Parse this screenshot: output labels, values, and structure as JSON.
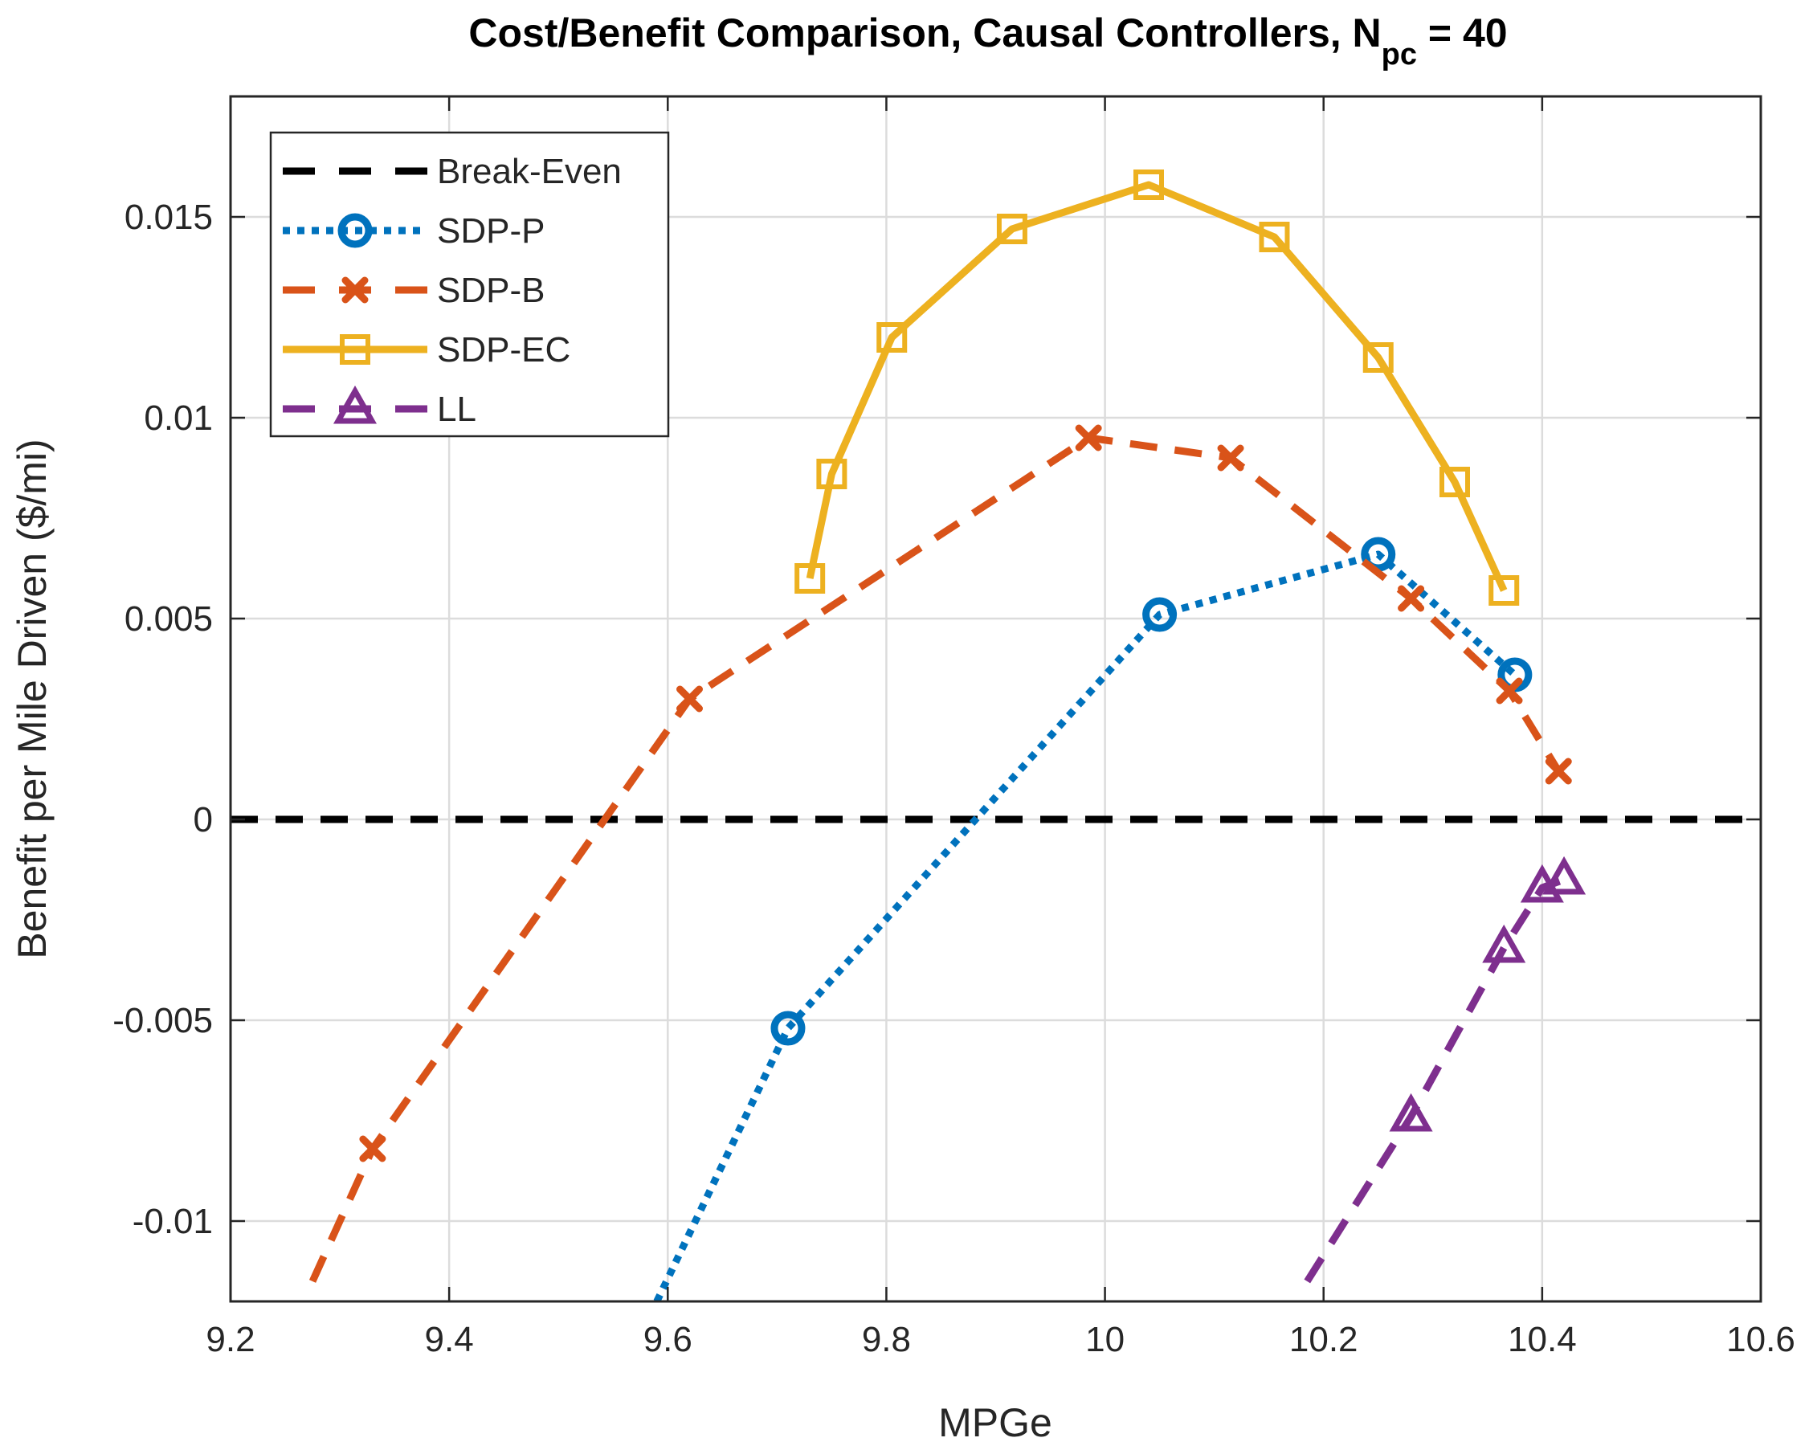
{
  "chart_data": {
    "type": "line",
    "title": "Cost/Benefit Comparison, Causal Controllers, N",
    "title_subscript": "pc",
    "title_suffix": " = 40",
    "xlabel": "MPGe",
    "ylabel": "Benefit per Mile Driven ($/mi)",
    "xlim": [
      9.2,
      10.6
    ],
    "ylim": [
      -0.012,
      0.018
    ],
    "xticks": [
      9.2,
      9.4,
      9.6,
      9.8,
      10,
      10.2,
      10.4,
      10.6
    ],
    "xtick_labels": [
      "9.2",
      "9.4",
      "9.6",
      "9.8",
      "10",
      "10.2",
      "10.4",
      "10.6"
    ],
    "yticks": [
      -0.01,
      -0.005,
      0,
      0.005,
      0.01,
      0.015
    ],
    "ytick_labels": [
      "-0.01",
      "-0.005",
      "0",
      "0.005",
      "0.01",
      "0.015"
    ],
    "grid": true,
    "legend_position": "top-left",
    "series": [
      {
        "name": "Break-Even",
        "color": "#000000",
        "style": "dashed",
        "marker": "none",
        "points": [
          [
            9.2,
            0
          ],
          [
            10.6,
            0
          ]
        ]
      },
      {
        "name": "SDP-P",
        "color": "#0072BD",
        "style": "dotted",
        "marker": "circle",
        "points": [
          [
            9.59,
            -0.012
          ],
          [
            9.71,
            -0.0052
          ],
          [
            10.05,
            0.0051
          ],
          [
            10.25,
            0.0066
          ],
          [
            10.375,
            0.0036
          ]
        ],
        "marker_from": 1
      },
      {
        "name": "SDP-B",
        "color": "#D95319",
        "style": "dashed",
        "marker": "x",
        "points": [
          [
            9.275,
            -0.0115
          ],
          [
            9.33,
            -0.0082
          ],
          [
            9.62,
            0.003
          ],
          [
            9.985,
            0.0095
          ],
          [
            10.115,
            0.009
          ],
          [
            10.28,
            0.0055
          ],
          [
            10.37,
            0.0032
          ],
          [
            10.415,
            0.0012
          ]
        ],
        "marker_from": 1
      },
      {
        "name": "SDP-EC",
        "color": "#EDB120",
        "style": "solid",
        "marker": "square",
        "points": [
          [
            9.73,
            0.006
          ],
          [
            9.75,
            0.0086
          ],
          [
            9.805,
            0.012
          ],
          [
            9.915,
            0.0147
          ],
          [
            10.04,
            0.0158
          ],
          [
            10.155,
            0.0145
          ],
          [
            10.25,
            0.0115
          ],
          [
            10.32,
            0.0084
          ],
          [
            10.365,
            0.0057
          ]
        ],
        "marker_from": 0
      },
      {
        "name": "LL",
        "color": "#7E2F8E",
        "style": "dashed",
        "marker": "triangle",
        "points": [
          [
            10.185,
            -0.0115
          ],
          [
            10.28,
            -0.0074
          ],
          [
            10.365,
            -0.0032
          ],
          [
            10.4,
            -0.0017
          ],
          [
            10.42,
            -0.0015
          ]
        ],
        "marker_from": 1
      }
    ]
  }
}
